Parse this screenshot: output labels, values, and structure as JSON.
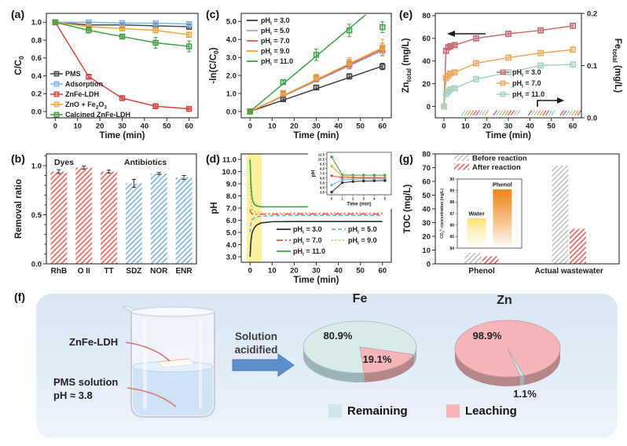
{
  "panels": {
    "a": {
      "tag": "(a)"
    },
    "b": {
      "tag": "(b)"
    },
    "c": {
      "tag": "(c)"
    },
    "d": {
      "tag": "(d)"
    },
    "e": {
      "tag": "(e)"
    },
    "f": {
      "tag": "(f)"
    },
    "g": {
      "tag": "(g)"
    }
  },
  "chart_data": [
    {
      "id": "a",
      "type": "line",
      "xlabel": "Time (min)",
      "ylabel": "C/C~0~",
      "xlim": [
        -4,
        64
      ],
      "ylim": [
        -0.07,
        1.1
      ],
      "xticks": [
        0,
        10,
        20,
        30,
        40,
        50,
        60
      ],
      "xtick_labels": [
        "0",
        "10",
        "20",
        "30",
        "40",
        "50",
        "60"
      ],
      "yticks": [
        0.0,
        0.2,
        0.4,
        0.6,
        0.8,
        1.0
      ],
      "ytick_labels": [
        "0.0",
        "0.2",
        "0.4",
        "0.6",
        "0.8",
        "1.0"
      ],
      "x": [
        0,
        15,
        30,
        45,
        60
      ],
      "series": [
        {
          "name": "PMS",
          "color": "#4a4a4a",
          "values": [
            1.0,
            0.97,
            0.97,
            0.96,
            0.95
          ],
          "err": [
            0.01,
            0.02,
            0.02,
            0.02,
            0.03
          ]
        },
        {
          "name": "Adsorption",
          "color": "#7fb4e4",
          "values": [
            1.0,
            1.0,
            0.99,
            0.99,
            0.98
          ],
          "err": [
            0.01,
            0.01,
            0.01,
            0.01,
            0.02
          ]
        },
        {
          "name": "ZnFe-LDH",
          "color": "#d8433c",
          "values": [
            1.0,
            0.39,
            0.15,
            0.06,
            0.03
          ],
          "err": [
            0.01,
            0.02,
            0.02,
            0.02,
            0.01
          ]
        },
        {
          "name": "ZnO + Fe~2~O~3~",
          "color": "#eaa83e",
          "values": [
            1.0,
            0.95,
            0.93,
            0.91,
            0.86
          ],
          "err": [
            0.01,
            0.02,
            0.02,
            0.03,
            0.03
          ]
        },
        {
          "name": "Calcined ZnFe-LDH",
          "color": "#3f9d44",
          "values": [
            1.0,
            0.91,
            0.84,
            0.77,
            0.73
          ],
          "err": [
            0.01,
            0.03,
            0.02,
            0.06,
            0.06
          ]
        }
      ]
    },
    {
      "id": "b",
      "type": "bar",
      "ylabel": "Removal ratio",
      "ylim": [
        0,
        1.12
      ],
      "yticks": [
        0,
        0.5,
        1.0
      ],
      "ytick_labels": [
        "0.0",
        "0.5",
        "1.0"
      ],
      "categories": [
        "RhB",
        "O II",
        "TT",
        "SDZ",
        "NOR",
        "ENR"
      ],
      "values": [
        0.94,
        0.98,
        0.94,
        0.82,
        0.92,
        0.88
      ],
      "errors": [
        0.02,
        0.015,
        0.015,
        0.04,
        0.01,
        0.02
      ],
      "hatch_colors": [
        "#e2685e",
        "#e2685e",
        "#e2685e",
        "#7fb0dd",
        "#7fb0dd",
        "#7fb0dd"
      ],
      "group_labels": [
        "Dyes",
        "Antibiotics"
      ]
    },
    {
      "id": "c",
      "type": "line",
      "xlabel": "Time (min)",
      "ylabel": "-ln(C/C~0~)",
      "xlim": [
        -4,
        64
      ],
      "ylim": [
        -0.35,
        5.45
      ],
      "xticks": [
        0,
        10,
        20,
        30,
        40,
        50,
        60
      ],
      "xtick_labels": [
        "0",
        "10",
        "20",
        "30",
        "40",
        "50",
        "60"
      ],
      "yticks": [
        0,
        1,
        2,
        3,
        4,
        5
      ],
      "ytick_labels": [
        "0.0",
        "1.0",
        "2.0",
        "3.0",
        "4.0",
        "5.0"
      ],
      "x": [
        0,
        15,
        30,
        45,
        60
      ],
      "series": [
        {
          "name": "pH~i~ = 3.0",
          "color": "#3f3f3f",
          "values": [
            0,
            0.68,
            1.33,
            1.95,
            2.5
          ],
          "err": [
            0.04,
            0.08,
            0.12,
            0.15,
            0.18
          ],
          "fit_end": [
            60,
            2.52
          ]
        },
        {
          "name": "pH~i~ = 5.0",
          "color": "#8fb3dc",
          "values": [
            0,
            0.95,
            1.78,
            2.57,
            3.36
          ],
          "err": [
            0.04,
            0.1,
            0.14,
            0.2,
            0.28
          ],
          "fit_end": [
            60,
            3.38
          ]
        },
        {
          "name": "pH~i~ = 7.0",
          "color": "#e2574a",
          "values": [
            0,
            0.98,
            1.83,
            2.63,
            3.45
          ],
          "err": [
            0.04,
            0.1,
            0.16,
            0.26,
            0.34
          ],
          "fit_end": [
            60,
            3.46
          ]
        },
        {
          "name": "pH~i~ = 9.0",
          "color": "#eaa83e",
          "values": [
            0,
            1.03,
            1.89,
            2.7,
            3.55
          ],
          "err": [
            0.04,
            0.12,
            0.18,
            0.3,
            0.45
          ],
          "fit_end": [
            60,
            3.54
          ]
        },
        {
          "name": "pH~i~ = 11.0",
          "color": "#3fa047",
          "values": [
            0,
            1.63,
            3.15,
            4.5,
            4.68
          ],
          "err": [
            0.05,
            0.12,
            0.32,
            0.35,
            0.3
          ],
          "fit_end": [
            52.5,
            5.38
          ]
        }
      ]
    },
    {
      "id": "d",
      "type": "line",
      "xlabel": "Time (min)",
      "ylabel": "pH",
      "xlim": [
        -4,
        64
      ],
      "ylim": [
        2.55,
        11.45
      ],
      "band": [
        -1.5,
        5.3
      ],
      "xticks": [
        0,
        10,
        20,
        30,
        40,
        50,
        60
      ],
      "xtick_labels": [
        "0",
        "10",
        "20",
        "30",
        "40",
        "50",
        "60"
      ],
      "yticks": [
        3,
        4,
        5,
        6,
        7,
        8,
        9,
        10,
        11
      ],
      "ytick_labels": [
        "3.0",
        "4.0",
        "5.0",
        "6.0",
        "7.0",
        "8.0",
        "9.0",
        "10.0",
        "11.0"
      ],
      "x": [
        0,
        0.4,
        0.8,
        1.2,
        2,
        3,
        5,
        10,
        20,
        30,
        40,
        50,
        60
      ],
      "series": [
        {
          "name": "pH~i~ = 3.0",
          "color": "#2f2f2f",
          "dash": "solid",
          "values": [
            3.0,
            4.3,
            4.85,
            5.1,
            5.4,
            5.6,
            5.78,
            5.88,
            5.9,
            5.9,
            5.9,
            5.9,
            5.9
          ]
        },
        {
          "name": "pH~i~ = 5.0",
          "color": "#6faede",
          "dash": "dash",
          "values": [
            5.0,
            5.75,
            6.0,
            6.1,
            6.2,
            6.28,
            6.33,
            6.38,
            6.4,
            6.4,
            6.4,
            6.4,
            6.4
          ]
        },
        {
          "name": "pH~i~ = 7.0",
          "color": "#e2574a",
          "dash": "dashdot",
          "values": [
            6.9,
            6.62,
            6.55,
            6.52,
            6.5,
            6.5,
            6.5,
            6.5,
            6.52,
            6.52,
            6.52,
            6.52,
            6.52
          ]
        },
        {
          "name": "pH~i~ = 9.0",
          "color": "#eaa83e",
          "dash": "dot",
          "values": [
            9.0,
            7.5,
            7.0,
            6.85,
            6.72,
            6.66,
            6.62,
            6.6,
            6.62,
            6.62,
            6.62,
            6.62,
            6.62
          ]
        },
        {
          "name": "pH~i~ = 11.0",
          "color": "#3fa047",
          "dash": "solid",
          "values": [
            11.0,
            9.0,
            8.0,
            7.6,
            7.3,
            7.18,
            7.1,
            7.1,
            7.1,
            7.1,
            7.1,
            7.1,
            7.1
          ]
        }
      ],
      "legend_cols": [
        [
          0,
          2,
          4
        ],
        [
          1,
          3
        ]
      ],
      "inset": {
        "ylabel": "pH",
        "xlabel": "Time (min)",
        "yticks": [
          3.5,
          4.5,
          5.5,
          6.5,
          7.5,
          8.5,
          9.5,
          10.5,
          11.5
        ],
        "ytick_labels": [
          "3.5",
          "4.5",
          "5.5",
          "6.5",
          "7.5",
          "8.5",
          "9.5",
          "10.5",
          "11.5"
        ],
        "xticks": [
          0,
          1,
          2,
          3,
          4,
          5
        ],
        "xtick_labels": [
          "0",
          "1",
          "2",
          "3",
          "4",
          "5"
        ],
        "x": [
          0,
          1,
          2,
          3,
          4,
          5
        ],
        "series": [
          {
            "color": "#3fa047",
            "values": [
              11.0,
              7.15,
              7.1,
              7.1,
              7.1,
              7.1
            ]
          },
          {
            "color": "#eaa83e",
            "values": [
              9.0,
              6.9,
              6.75,
              6.7,
              6.65,
              6.65
            ]
          },
          {
            "color": "#e2574a",
            "values": [
              7.0,
              6.6,
              6.55,
              6.5,
              6.5,
              6.5
            ]
          },
          {
            "color": "#6faede",
            "values": [
              5.0,
              6.1,
              6.25,
              6.3,
              6.3,
              6.3
            ]
          },
          {
            "color": "#2f2f2f",
            "values": [
              3.5,
              5.5,
              5.75,
              5.85,
              5.9,
              5.95
            ]
          }
        ]
      }
    },
    {
      "id": "e",
      "type": "line",
      "xlabel": "Time (min)",
      "ylabel": "Zn~total~ (mg/L)",
      "right_ylabel": "Fe~total~ (mg/L)",
      "xlim": [
        -4,
        64
      ],
      "ylim": [
        -10,
        82
      ],
      "xticks": [
        0,
        10,
        20,
        30,
        40,
        50,
        60
      ],
      "xtick_labels": [
        "0",
        "10",
        "20",
        "30",
        "40",
        "50",
        "60"
      ],
      "yticks": [
        0,
        20,
        40,
        60,
        80
      ],
      "ytick_labels": [
        "0",
        "20",
        "40",
        "60",
        "80"
      ],
      "right_yticks": [
        0,
        0.1,
        0.2
      ],
      "right_ytick_labels": [
        "0.0",
        "0.1",
        "0.2"
      ],
      "x": [
        0,
        1,
        2,
        3,
        5,
        15,
        30,
        45,
        60
      ],
      "series": [
        {
          "name": "pH~i~ = 3.0",
          "color": "#c96b75",
          "values": [
            0,
            49,
            52,
            53,
            54,
            60,
            64,
            67,
            71
          ],
          "err": [
            1,
            1.5,
            1.5,
            1.5,
            1.5,
            2,
            2,
            2,
            2
          ]
        },
        {
          "name": "pH~i~ = 7.0",
          "color": "#ecaa60",
          "values": [
            0,
            25,
            27,
            29,
            30,
            38,
            43,
            47,
            50
          ],
          "err": [
            1,
            1.5,
            1.5,
            1.5,
            1.5,
            2,
            2,
            2,
            2
          ]
        },
        {
          "name": "pH~i~ = 11.0",
          "color": "#a7d3c3",
          "values": [
            0,
            11,
            13,
            15,
            16,
            24,
            30,
            36,
            37
          ],
          "err": [
            1,
            1.5,
            1.5,
            1.5,
            1.5,
            2,
            2,
            2,
            2
          ]
        }
      ],
      "hatch_colors": [
        "#a7d3c3",
        "#ecaa60",
        "#c96b75"
      ]
    },
    {
      "id": "g",
      "type": "grouped-bar",
      "ylabel": "TOC (mg/L)",
      "ylim": [
        0,
        80
      ],
      "yticks": [
        0,
        10,
        20,
        30,
        40,
        50,
        60,
        70,
        80
      ],
      "ytick_labels": [
        "0",
        "10",
        "20",
        "30",
        "40",
        "50",
        "60",
        "70",
        "80"
      ],
      "groups": [
        "Phenol",
        "Actual wastewater"
      ],
      "legend": [
        "Before reaction",
        "After reaction"
      ],
      "before": [
        8,
        71.5
      ],
      "after": [
        5.5,
        25.5
      ],
      "before_color": "#bfbfbf",
      "after_color": "#dc5f55",
      "inset": {
        "ylabel": "CO~3~^2-^ concentration (mg/L)",
        "yticks": [
          84,
          85,
          86,
          87,
          88,
          89,
          90
        ],
        "ytick_labels": [
          "84",
          "85",
          "86",
          "87",
          "88",
          "89",
          "90"
        ],
        "bars": [
          {
            "label": "Water",
            "value": 86.6,
            "color_top": "#ffdf70",
            "color_mid": "#fff3c0"
          },
          {
            "label": "Phenol",
            "value": 89.1,
            "color_top": "#ee8216",
            "color_mid": "#f7c38e"
          }
        ]
      }
    },
    {
      "id": "f-fe",
      "type": "pie",
      "title": "Fe",
      "slices": [
        {
          "label": "Remaining",
          "value": 80.9,
          "pct": "80.9%",
          "color": "#d8eaea"
        },
        {
          "label": "Leaching",
          "value": 19.1,
          "pct": "19.1%",
          "color": "#f5b5b9"
        }
      ]
    },
    {
      "id": "f-zn",
      "type": "pie",
      "title": "Zn",
      "slices": [
        {
          "label": "Leaching",
          "value": 98.9,
          "pct": "98.9%",
          "color": "#f5b5b9"
        },
        {
          "label": "Remaining",
          "value": 1.1,
          "pct": "1.1%",
          "color": "#d8eaea"
        }
      ]
    }
  ],
  "diagram": {
    "beaker_label_1": "ZnFe-LDH",
    "beaker_label_2a": "PMS solution",
    "beaker_label_2b": "pH ≈ 3.8",
    "arrow_label_1": "Solution",
    "arrow_label_2": "acidified",
    "legend": [
      {
        "label": "Remaining",
        "color": "#cfe7ec"
      },
      {
        "label": "Leaching",
        "color": "#f6b4b9"
      }
    ]
  }
}
